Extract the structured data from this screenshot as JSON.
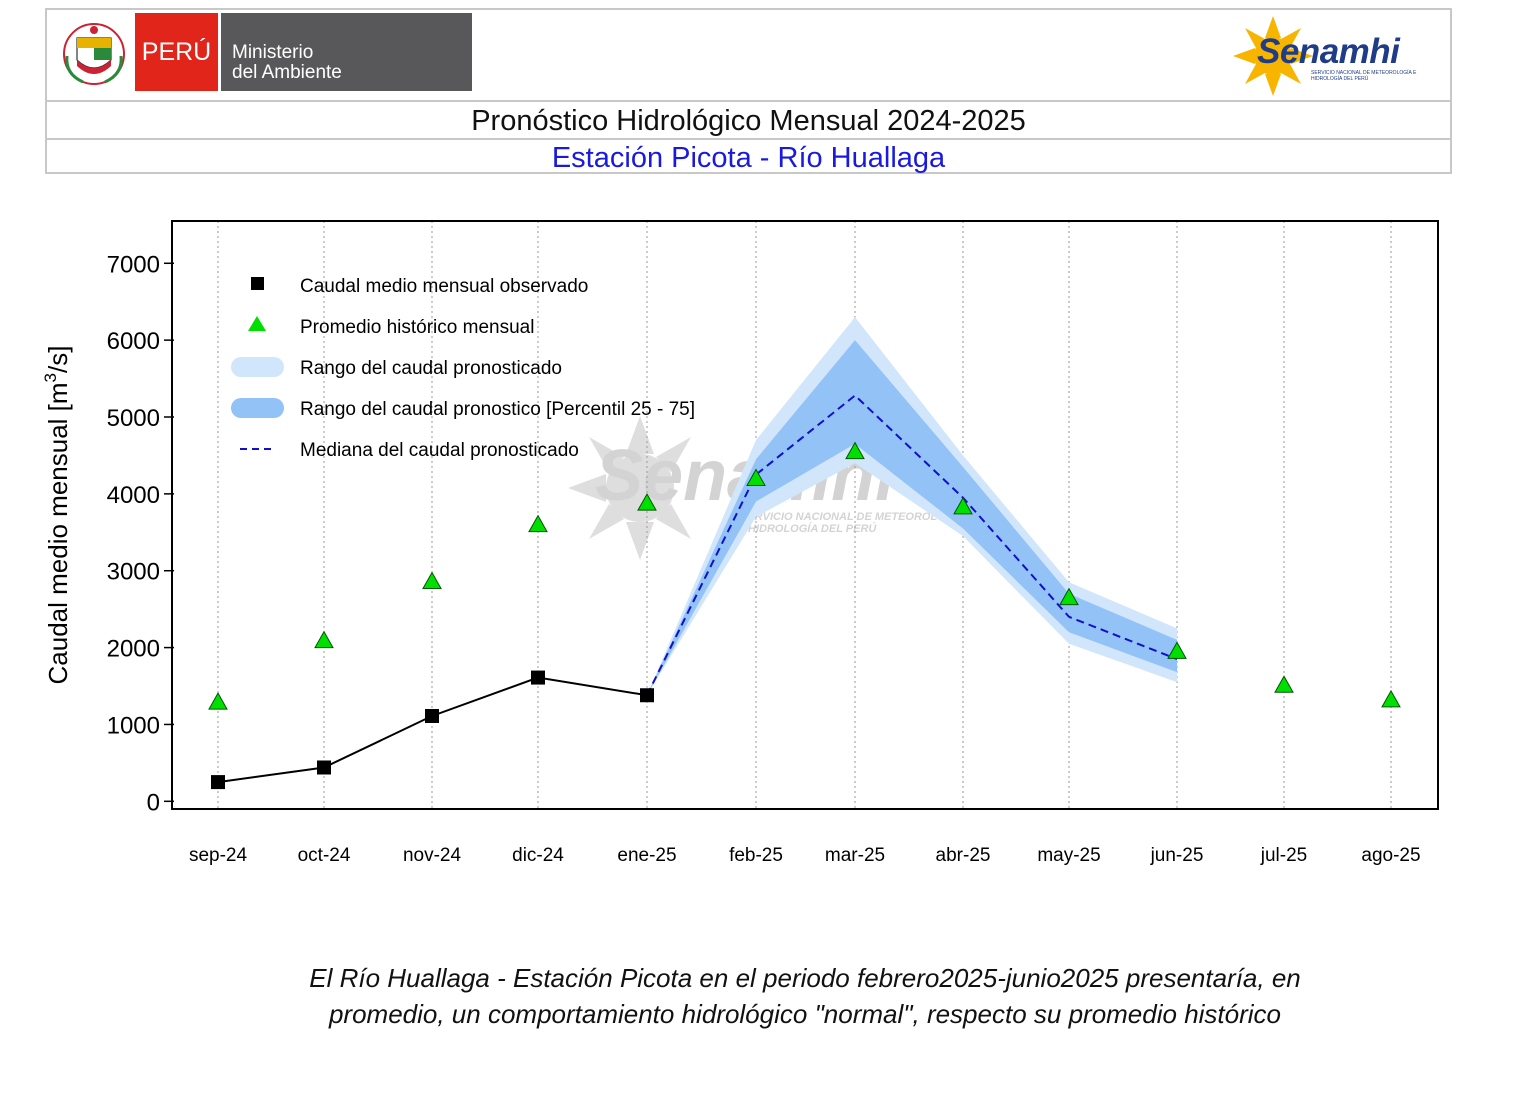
{
  "header": {
    "country": "PERÚ",
    "ministry_line1": "Ministerio",
    "ministry_line2": "del Ambiente",
    "agency": "Senamhi",
    "agency_subtitle": "SERVICIO NACIONAL DE METEOROLOGÍA E HIDROLOGÍA DEL PERÚ",
    "title": "Pronóstico Hidrológico Mensual 2024-2025",
    "subtitle": "Estación Picota - Río Huallaga"
  },
  "watermark": {
    "word": "Senamhi",
    "line1": "SERVICIO NACIONAL DE METEOROLOGÍA E",
    "line2": "HIDROLOGÍA DEL PERÚ"
  },
  "chart_data": {
    "type": "line",
    "ylabel": "Caudal medio mensual  [m³/s]",
    "ylabel_main": "Caudal medio mensual  [m",
    "ylabel_sup": "3",
    "ylabel_end": "/s]",
    "ylim": [
      -100,
      7550
    ],
    "yticks": [
      0,
      1000,
      2000,
      3000,
      4000,
      5000,
      6000,
      7000
    ],
    "categories": [
      "sep-24",
      "oct-24",
      "nov-24",
      "dic-24",
      "ene-25",
      "feb-25",
      "mar-25",
      "abr-25",
      "may-25",
      "jun-25",
      "jul-25",
      "ago-25"
    ],
    "grid": "vertical dotted",
    "legend_position": "top-left",
    "legend": [
      "Caudal medio mensual observado",
      "Promedio histórico mensual",
      "Rango del caudal pronosticado",
      "Rango del caudal pronostico [Percentil 25 - 75]",
      "Mediana del caudal pronosticado"
    ],
    "series": [
      {
        "name": "Caudal medio mensual observado",
        "kind": "line-square",
        "color": "#000000",
        "x": [
          "sep-24",
          "oct-24",
          "nov-24",
          "dic-24",
          "ene-25"
        ],
        "values": [
          250,
          440,
          1110,
          1610,
          1380
        ]
      },
      {
        "name": "Promedio histórico mensual",
        "kind": "triangle",
        "color": "#00e000",
        "x": [
          "sep-24",
          "oct-24",
          "nov-24",
          "dic-24",
          "ene-25",
          "feb-25",
          "mar-25",
          "abr-25",
          "may-25",
          "jun-25",
          "jul-25",
          "ago-25"
        ],
        "values": [
          1290,
          2090,
          2860,
          3600,
          3880,
          4200,
          4550,
          3830,
          2650,
          1950,
          1510,
          1320
        ]
      },
      {
        "name": "Rango del caudal pronosticado",
        "kind": "band",
        "color": "#d2e6fb",
        "x": [
          "ene-25",
          "feb-25",
          "mar-25",
          "abr-25",
          "may-25",
          "jun-25"
        ],
        "low": [
          1380,
          3700,
          4400,
          3450,
          2050,
          1550
        ],
        "high": [
          1380,
          4700,
          6300,
          4500,
          2850,
          2250
        ]
      },
      {
        "name": "Rango del caudal pronostico [Percentil 25 - 75]",
        "kind": "band",
        "color": "#93c2f6",
        "x": [
          "ene-25",
          "feb-25",
          "mar-25",
          "abr-25",
          "may-25",
          "jun-25"
        ],
        "low": [
          1380,
          3900,
          4650,
          3550,
          2200,
          1680
        ],
        "high": [
          1380,
          4450,
          6000,
          4350,
          2700,
          2100
        ]
      },
      {
        "name": "Mediana del caudal pronosticado",
        "kind": "dashed-line",
        "color": "#1010cc",
        "x": [
          "ene-25",
          "feb-25",
          "mar-25",
          "abr-25",
          "may-25",
          "jun-25"
        ],
        "values": [
          1380,
          4250,
          5280,
          3950,
          2400,
          1850
        ]
      }
    ]
  },
  "caption": {
    "line1": "El Río Huallaga - Estación Picota en el periodo febrero2025-junio2025 presentaría, en",
    "line2": "promedio, un comportamiento hidrológico \"normal\", respecto su promedio histórico"
  }
}
